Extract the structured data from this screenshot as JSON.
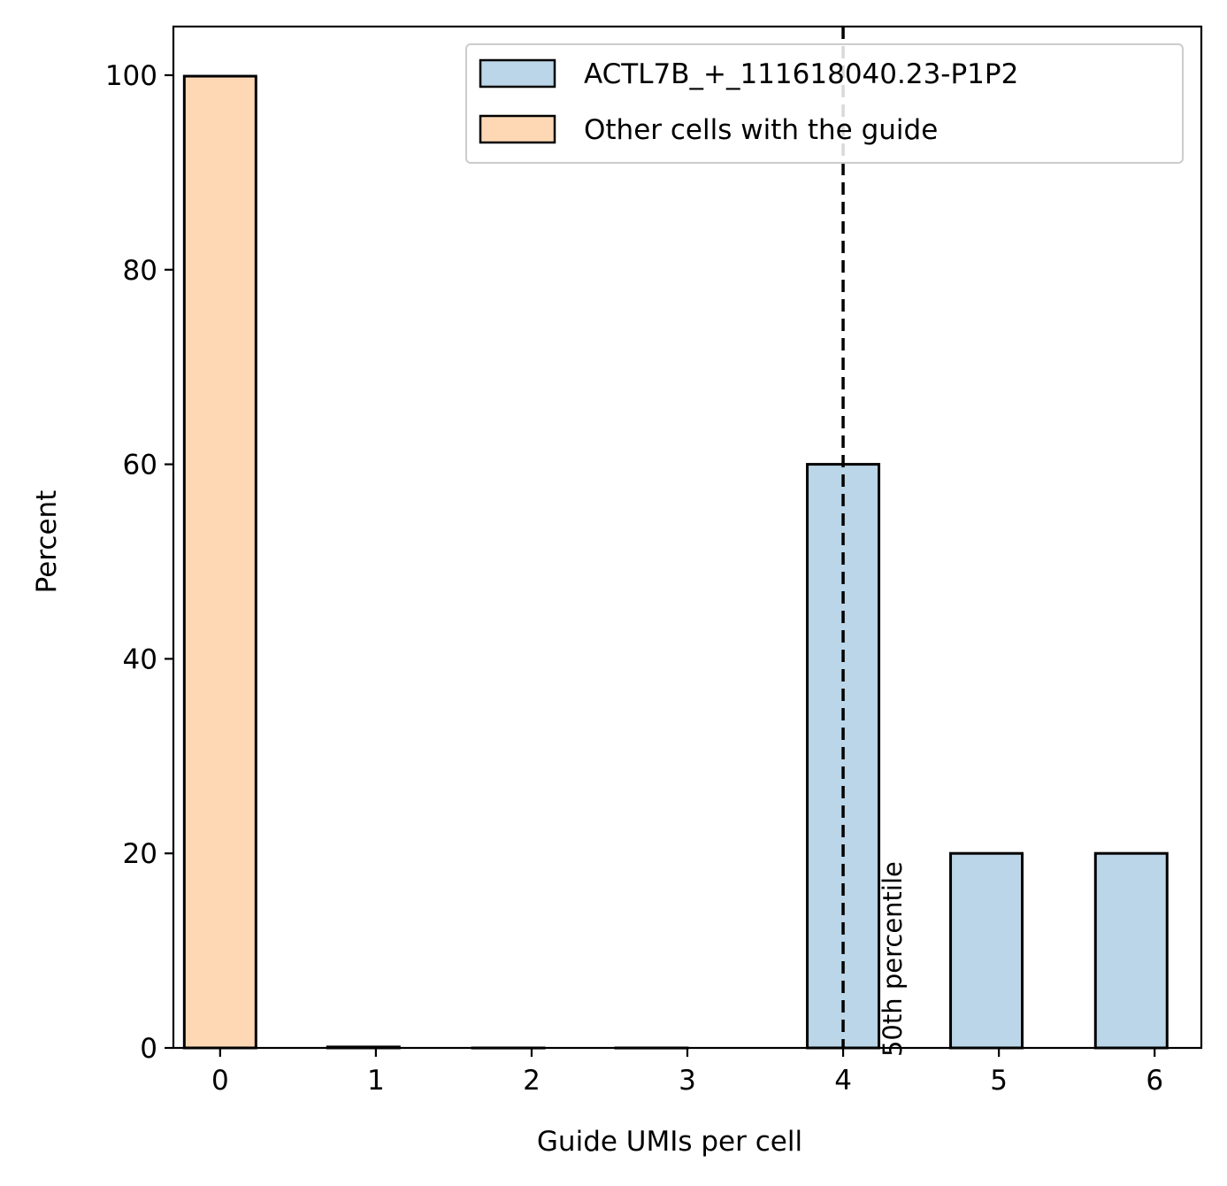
{
  "chart_data": {
    "type": "bar",
    "title": "",
    "xlabel": "Guide UMIs per cell",
    "ylabel": "Percent",
    "xlim": [
      -0.3,
      6.3
    ],
    "ylim": [
      0,
      105
    ],
    "xticks": [
      0,
      1,
      2,
      3,
      4,
      5,
      6
    ],
    "yticks": [
      0,
      20,
      40,
      60,
      80,
      100
    ],
    "bar_width": 0.46,
    "grid": false,
    "legend_position": "top-right",
    "series": [
      {
        "name": "ACTL7B_+_111618040.23-P1P2",
        "color": "#bad6e8",
        "bars": [
          {
            "x": 4,
            "value": 60
          },
          {
            "x": 4.92,
            "value": 20
          },
          {
            "x": 5.85,
            "value": 20
          }
        ]
      },
      {
        "name": "Other cells with the guide",
        "color": "#fed8b5",
        "bars": [
          {
            "x": 0,
            "value": 99.9
          },
          {
            "x": 0.92,
            "value": 0.1
          },
          {
            "x": 1.85,
            "value": 0
          },
          {
            "x": 2.77,
            "value": 0
          }
        ]
      }
    ],
    "reference_line": {
      "x": 4,
      "style": "dashed",
      "label": "50th percentile"
    }
  }
}
